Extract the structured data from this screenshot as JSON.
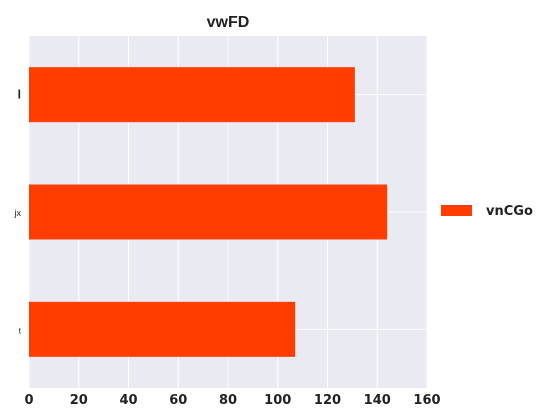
{
  "chart_data": {
    "type": "bar",
    "orientation": "horizontal",
    "title": "vwFD",
    "xlabel": "",
    "ylabel": "",
    "categories": [
      "l",
      "jx",
      "t"
    ],
    "series": [
      {
        "name": "vnCGo",
        "values": [
          131,
          144,
          107
        ]
      }
    ],
    "xlim": [
      0,
      160
    ],
    "xticks": [
      0,
      20,
      40,
      60,
      80,
      100,
      120,
      140,
      160
    ],
    "grid": true,
    "legend": "right",
    "colors": {
      "bar": "#ff3d00",
      "plot_background": "#eaeaf2",
      "grid": "#ffffff"
    }
  }
}
